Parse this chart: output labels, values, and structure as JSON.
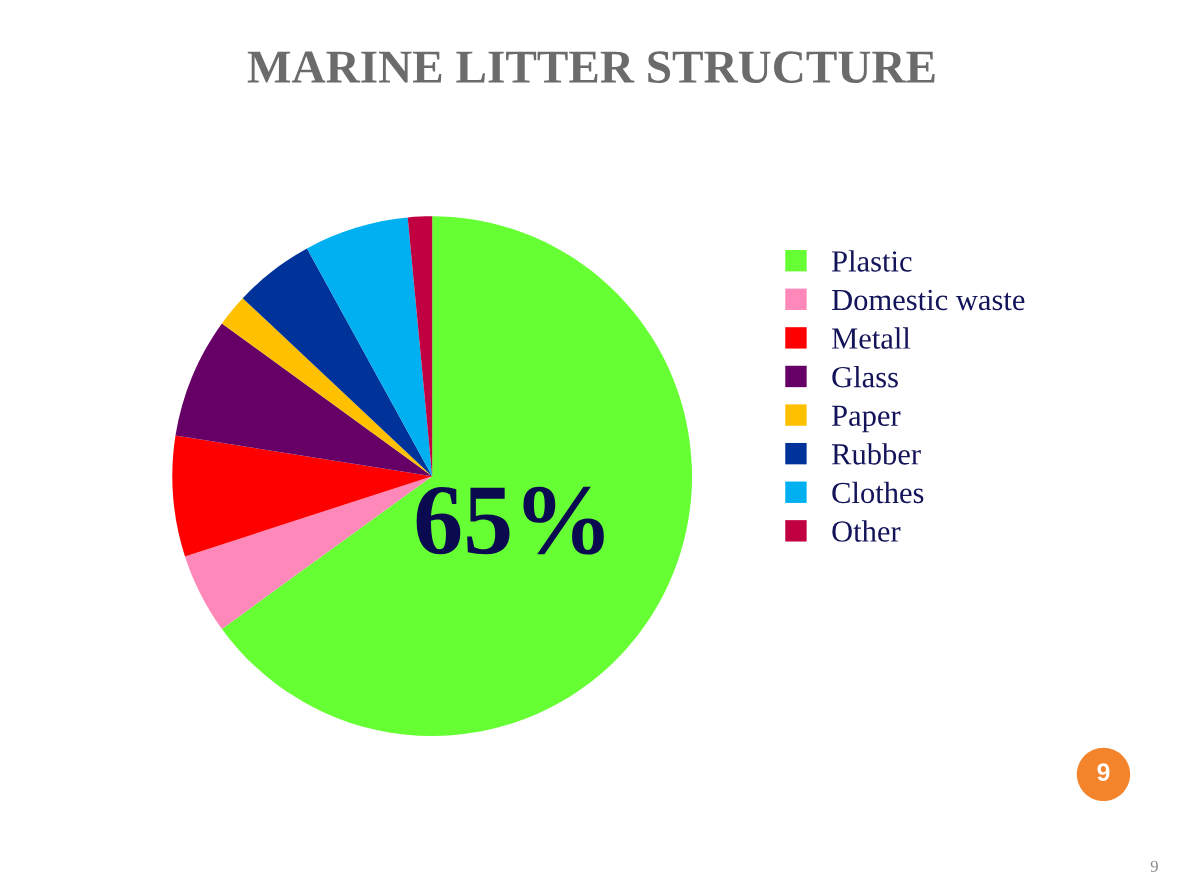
{
  "chart_data": {
    "type": "pie",
    "title": "MARINE LITTER STRUCTURE",
    "categories": [
      "Plastic",
      "Domestic waste",
      "Metall",
      "Glass",
      "Paper",
      "Rubber",
      "Clothes",
      "Other"
    ],
    "values": [
      65,
      5,
      7.5,
      7.5,
      2,
      5,
      6.5,
      1.5
    ],
    "colors": [
      "#66ff33",
      "#ff88bb",
      "#ff0000",
      "#660066",
      "#ffc000",
      "#003399",
      "#00b0f0",
      "#c00040"
    ],
    "value_labels": [
      "65%",
      null,
      null,
      null,
      null,
      null,
      null,
      null
    ],
    "legend": "right",
    "annotations": [
      "9",
      "9"
    ]
  }
}
